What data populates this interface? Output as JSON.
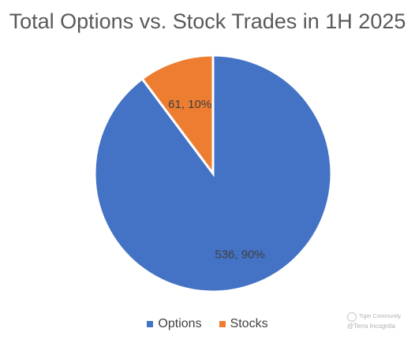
{
  "chart_data": {
    "type": "pie",
    "title": "Total Options vs. Stock Trades in 1H 2025",
    "categories": [
      "Options",
      "Stocks"
    ],
    "values": [
      536,
      61
    ],
    "data_labels": [
      "536, 90%",
      "61, 10%"
    ],
    "colors": [
      "#4472C4",
      "#ED7D31"
    ],
    "legend_position": "bottom"
  },
  "watermark": {
    "brand": "Tiger Community",
    "handle": "@Terra Incognita"
  }
}
